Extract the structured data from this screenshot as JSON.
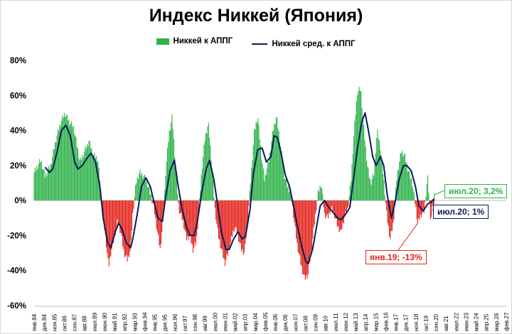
{
  "chart_data": {
    "type": "bar",
    "title": "Индекс Никкей (Япония)",
    "xlabel": "",
    "ylabel": "",
    "ylim": [
      -60,
      80
    ],
    "y_ticks": [
      "80%",
      "60%",
      "40%",
      "20%",
      "0%",
      "-20%",
      "-40%",
      "-60%"
    ],
    "grid": false,
    "legend_position": "top-center",
    "x_tick_labels": [
      "янв.84",
      "дек.84",
      "ноя.85",
      "окт.86",
      "сен.87",
      "авг.88",
      "июл.89",
      "июн.90",
      "май.91",
      "апр.92",
      "мар.93",
      "фев.94",
      "янв.95",
      "дек.95",
      "ноя.96",
      "окт.97",
      "сен.98",
      "авг.99",
      "июл.00",
      "июн.01",
      "май.02",
      "апр.03",
      "мар.04",
      "фев.05",
      "янв.06",
      "дек.06",
      "ноя.07",
      "окт.08",
      "сен.09",
      "авг.10",
      "июл.11",
      "июн.12",
      "май.13",
      "апр.14",
      "мар.15",
      "фев.16",
      "янв.17",
      "дек.17",
      "ноя.18",
      "окт.19",
      "сен.20",
      "авг.21",
      "июл.22",
      "июн.23",
      "май.24",
      "апр.25",
      "мар.26",
      "фев.27"
    ],
    "series": [
      {
        "name": "Никкей к АППГ",
        "kind": "bar",
        "positive_color": "#2eb34a",
        "negative_color": "#e3241b",
        "points": [
          [
            1984.0,
            16
          ],
          [
            1984.6,
            23
          ],
          [
            1985.0,
            14
          ],
          [
            1985.5,
            20
          ],
          [
            1986.0,
            35
          ],
          [
            1986.4,
            44
          ],
          [
            1986.8,
            50
          ],
          [
            1987.2,
            45
          ],
          [
            1987.6,
            42
          ],
          [
            1987.9,
            32
          ],
          [
            1988.2,
            22
          ],
          [
            1988.6,
            28
          ],
          [
            1989.0,
            34
          ],
          [
            1989.4,
            26
          ],
          [
            1989.8,
            24
          ],
          [
            1990.0,
            12
          ],
          [
            1990.2,
            -5
          ],
          [
            1990.5,
            -20
          ],
          [
            1990.8,
            -38
          ],
          [
            1991.0,
            -30
          ],
          [
            1991.3,
            -22
          ],
          [
            1991.6,
            -12
          ],
          [
            1991.9,
            -18
          ],
          [
            1992.2,
            -30
          ],
          [
            1992.5,
            -34
          ],
          [
            1992.8,
            -28
          ],
          [
            1993.0,
            -8
          ],
          [
            1993.3,
            10
          ],
          [
            1993.6,
            16
          ],
          [
            1994.0,
            14
          ],
          [
            1994.3,
            10
          ],
          [
            1994.6,
            4
          ],
          [
            1994.9,
            -3
          ],
          [
            1995.2,
            -16
          ],
          [
            1995.5,
            -28
          ],
          [
            1995.8,
            -10
          ],
          [
            1996.0,
            16
          ],
          [
            1996.3,
            38
          ],
          [
            1996.6,
            48
          ],
          [
            1996.9,
            20
          ],
          [
            1997.2,
            -5
          ],
          [
            1997.6,
            -12
          ],
          [
            1997.9,
            -22
          ],
          [
            1998.2,
            -20
          ],
          [
            1998.5,
            -28
          ],
          [
            1998.8,
            -24
          ],
          [
            1999.0,
            -8
          ],
          [
            1999.3,
            18
          ],
          [
            1999.6,
            36
          ],
          [
            1999.9,
            44
          ],
          [
            2000.2,
            22
          ],
          [
            2000.5,
            -5
          ],
          [
            2000.8,
            -20
          ],
          [
            2001.1,
            -28
          ],
          [
            2001.4,
            -36
          ],
          [
            2001.7,
            -30
          ],
          [
            2002.0,
            -22
          ],
          [
            2002.3,
            -15
          ],
          [
            2002.6,
            -20
          ],
          [
            2002.9,
            -28
          ],
          [
            2003.2,
            -30
          ],
          [
            2003.5,
            -10
          ],
          [
            2003.8,
            15
          ],
          [
            2004.1,
            40
          ],
          [
            2004.4,
            48
          ],
          [
            2004.7,
            28
          ],
          [
            2005.0,
            12
          ],
          [
            2005.4,
            22
          ],
          [
            2005.8,
            40
          ],
          [
            2006.1,
            48
          ],
          [
            2006.4,
            36
          ],
          [
            2006.8,
            15
          ],
          [
            2007.1,
            8
          ],
          [
            2007.4,
            5
          ],
          [
            2007.7,
            -10
          ],
          [
            2008.0,
            -25
          ],
          [
            2008.4,
            -38
          ],
          [
            2008.7,
            -45
          ],
          [
            2009.0,
            -42
          ],
          [
            2009.3,
            -28
          ],
          [
            2009.6,
            -12
          ],
          [
            2009.9,
            4
          ],
          [
            2010.2,
            10
          ],
          [
            2010.5,
            -8
          ],
          [
            2010.8,
            -10
          ],
          [
            2011.1,
            -4
          ],
          [
            2011.4,
            -8
          ],
          [
            2011.7,
            -15
          ],
          [
            2012.0,
            -18
          ],
          [
            2012.3,
            -10
          ],
          [
            2012.6,
            -5
          ],
          [
            2012.9,
            10
          ],
          [
            2013.2,
            40
          ],
          [
            2013.5,
            62
          ],
          [
            2013.8,
            64
          ],
          [
            2014.1,
            40
          ],
          [
            2014.4,
            20
          ],
          [
            2014.7,
            10
          ],
          [
            2015.0,
            15
          ],
          [
            2015.3,
            40
          ],
          [
            2015.6,
            30
          ],
          [
            2015.9,
            12
          ],
          [
            2016.2,
            -10
          ],
          [
            2016.5,
            -22
          ],
          [
            2016.8,
            -12
          ],
          [
            2017.1,
            14
          ],
          [
            2017.5,
            28
          ],
          [
            2017.8,
            26
          ],
          [
            2018.1,
            18
          ],
          [
            2018.5,
            10
          ],
          [
            2018.8,
            -3
          ],
          [
            2019.0,
            -13
          ],
          [
            2019.3,
            -8
          ],
          [
            2019.6,
            -6
          ],
          [
            2019.9,
            14
          ],
          [
            2020.2,
            -12
          ],
          [
            2020.5,
            3.2
          ]
        ]
      },
      {
        "name": "Никкей сред. к АППГ",
        "kind": "line",
        "color": "#0a1a5c",
        "points": [
          [
            1985.0,
            19
          ],
          [
            1985.4,
            16
          ],
          [
            1985.7,
            18
          ],
          [
            1986.1,
            28
          ],
          [
            1986.5,
            40
          ],
          [
            1986.9,
            43
          ],
          [
            1987.3,
            37
          ],
          [
            1987.7,
            22
          ],
          [
            1988.0,
            18
          ],
          [
            1988.4,
            20
          ],
          [
            1988.8,
            24
          ],
          [
            1989.2,
            27
          ],
          [
            1989.6,
            22
          ],
          [
            1990.0,
            8
          ],
          [
            1990.3,
            -10
          ],
          [
            1990.7,
            -24
          ],
          [
            1991.0,
            -27
          ],
          [
            1991.4,
            -18
          ],
          [
            1991.7,
            -13
          ],
          [
            1992.0,
            -16
          ],
          [
            1992.4,
            -24
          ],
          [
            1992.8,
            -27
          ],
          [
            1993.0,
            -22
          ],
          [
            1993.4,
            -8
          ],
          [
            1993.8,
            8
          ],
          [
            1994.2,
            13
          ],
          [
            1994.6,
            8
          ],
          [
            1994.9,
            0
          ],
          [
            1995.3,
            -10
          ],
          [
            1995.7,
            -12
          ],
          [
            1996.0,
            2
          ],
          [
            1996.4,
            17
          ],
          [
            1996.8,
            23
          ],
          [
            1997.1,
            10
          ],
          [
            1997.5,
            -5
          ],
          [
            1997.9,
            -15
          ],
          [
            1998.2,
            -20
          ],
          [
            1998.6,
            -20
          ],
          [
            1998.9,
            -12
          ],
          [
            1999.3,
            5
          ],
          [
            1999.7,
            18
          ],
          [
            2000.0,
            23
          ],
          [
            2000.4,
            12
          ],
          [
            2000.8,
            -5
          ],
          [
            2001.1,
            -18
          ],
          [
            2001.5,
            -28
          ],
          [
            2001.8,
            -28
          ],
          [
            2002.2,
            -22
          ],
          [
            2002.6,
            -18
          ],
          [
            2003.0,
            -22
          ],
          [
            2003.3,
            -20
          ],
          [
            2003.7,
            -5
          ],
          [
            2004.0,
            15
          ],
          [
            2004.4,
            29
          ],
          [
            2004.8,
            30
          ],
          [
            2005.2,
            22
          ],
          [
            2005.6,
            25
          ],
          [
            2005.9,
            37
          ],
          [
            2006.2,
            36
          ],
          [
            2006.6,
            25
          ],
          [
            2006.9,
            15
          ],
          [
            2007.3,
            8
          ],
          [
            2007.7,
            -4
          ],
          [
            2008.0,
            -14
          ],
          [
            2008.4,
            -26
          ],
          [
            2008.8,
            -35
          ],
          [
            2009.0,
            -36
          ],
          [
            2009.4,
            -28
          ],
          [
            2009.8,
            -14
          ],
          [
            2010.1,
            -3
          ],
          [
            2010.5,
            0
          ],
          [
            2010.9,
            -4
          ],
          [
            2011.3,
            -7
          ],
          [
            2011.7,
            -10
          ],
          [
            2012.0,
            -11
          ],
          [
            2012.4,
            -8
          ],
          [
            2012.8,
            -4
          ],
          [
            2013.1,
            10
          ],
          [
            2013.5,
            30
          ],
          [
            2013.9,
            45
          ],
          [
            2014.2,
            50
          ],
          [
            2014.5,
            40
          ],
          [
            2014.9,
            25
          ],
          [
            2015.2,
            20
          ],
          [
            2015.6,
            25
          ],
          [
            2015.9,
            20
          ],
          [
            2016.2,
            4
          ],
          [
            2016.6,
            -10
          ],
          [
            2016.9,
            -2
          ],
          [
            2017.3,
            12
          ],
          [
            2017.7,
            20
          ],
          [
            2018.0,
            20
          ],
          [
            2018.4,
            17
          ],
          [
            2018.8,
            8
          ],
          [
            2019.1,
            -3
          ],
          [
            2019.5,
            -6
          ],
          [
            2019.9,
            -2
          ],
          [
            2020.2,
            -1
          ],
          [
            2020.5,
            1
          ]
        ]
      }
    ],
    "annotations": [
      {
        "text": "июл.20; 3,2%",
        "series": "Никкей к АППГ",
        "x": 2020.5,
        "y": 3.2,
        "color": "#2eb34a"
      },
      {
        "text": "июл.20; 1%",
        "series": "Никкей сред. к АППГ",
        "x": 2020.5,
        "y": 1,
        "color": "#0a1a5c"
      },
      {
        "text": "янв.19; -13%",
        "series": "Никкей к АППГ",
        "x": 2019.0,
        "y": -13,
        "color": "#e3241b"
      }
    ]
  }
}
